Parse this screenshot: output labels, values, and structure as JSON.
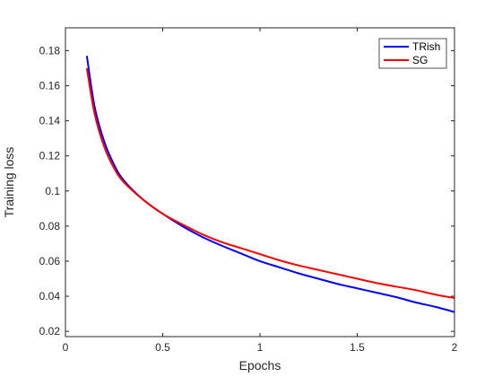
{
  "chart_data": {
    "type": "line",
    "title": "",
    "xlabel": "Epochs",
    "ylabel": "Training loss",
    "xlim": [
      0,
      2
    ],
    "ylim": [
      0.017,
      0.193
    ],
    "xticks": [
      0,
      0.5,
      1,
      1.5,
      2
    ],
    "xtick_labels": [
      "0",
      "0.5",
      "1",
      "1.5",
      "2"
    ],
    "yticks": [
      0.02,
      0.04,
      0.06,
      0.08,
      0.1,
      0.12,
      0.14,
      0.16,
      0.18
    ],
    "ytick_labels": [
      "0.02",
      "0.04",
      "0.06",
      "0.08",
      "0.1",
      "0.12",
      "0.14",
      "0.16",
      "0.18"
    ],
    "grid": false,
    "legend_position": "top-right",
    "x": [
      0.11,
      0.15,
      0.2,
      0.25,
      0.3,
      0.4,
      0.5,
      0.6,
      0.7,
      0.8,
      0.9,
      1.0,
      1.1,
      1.2,
      1.3,
      1.4,
      1.5,
      1.6,
      1.7,
      1.8,
      1.9,
      2.0
    ],
    "series": [
      {
        "name": "TRish",
        "color": "#0000ff",
        "values": [
          0.177,
          0.148,
          0.128,
          0.115,
          0.106,
          0.095,
          0.087,
          0.08,
          0.074,
          0.069,
          0.0645,
          0.06,
          0.0565,
          0.053,
          0.05,
          0.047,
          0.0445,
          0.042,
          0.0395,
          0.0365,
          0.034,
          0.031
        ]
      },
      {
        "name": "SG",
        "color": "#ff0000",
        "values": [
          0.17,
          0.144,
          0.125,
          0.113,
          0.105,
          0.095,
          0.087,
          0.081,
          0.0755,
          0.071,
          0.0675,
          0.064,
          0.0605,
          0.0575,
          0.055,
          0.0525,
          0.05,
          0.0475,
          0.0455,
          0.0435,
          0.041,
          0.039
        ]
      }
    ]
  }
}
